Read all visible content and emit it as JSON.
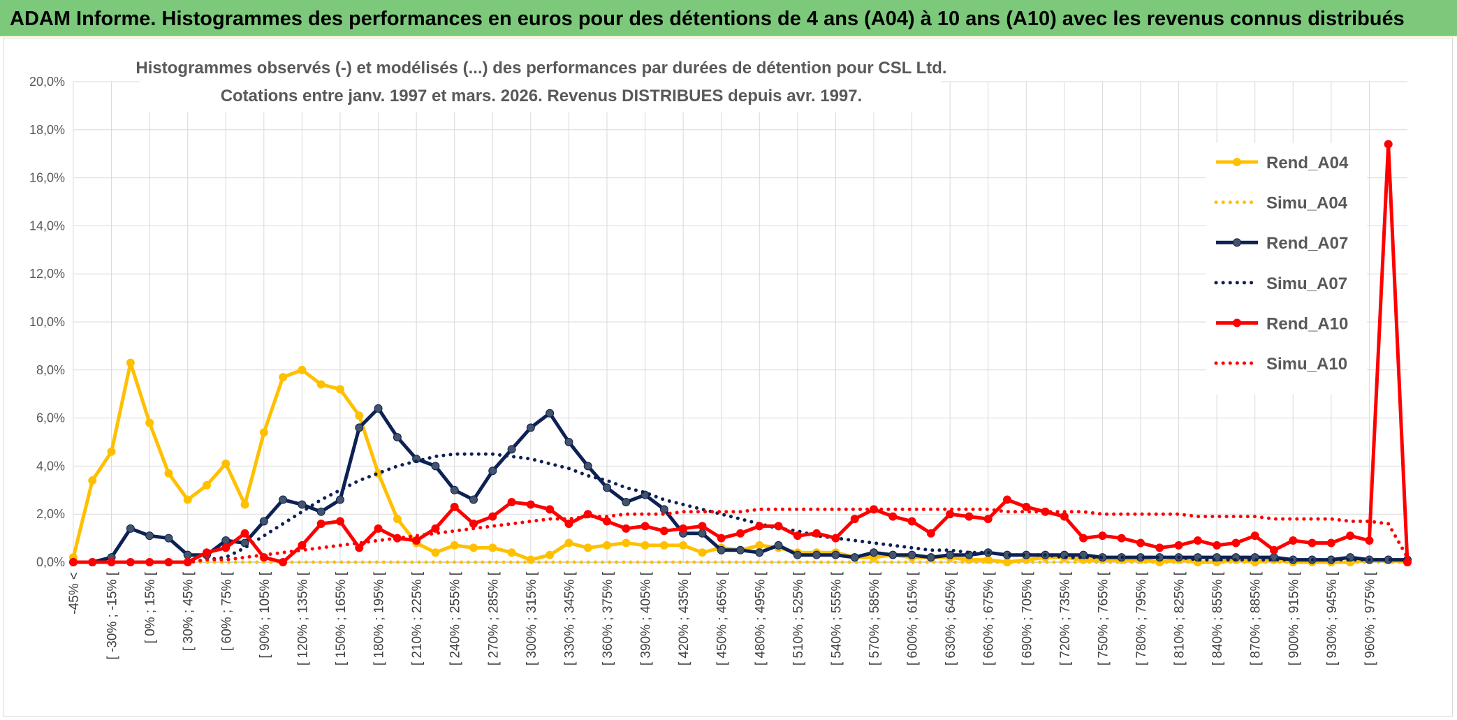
{
  "header": {
    "title": "ADAM Informe. Histogrammes des performances en euros pour des détentions de 4 ans (A04) à 10 ans (A10) avec les revenus connus distribués"
  },
  "chart_data": {
    "type": "line",
    "title": "Histogrammes observés (-) et modélisés (...) des performances par durées de détention pour CSL Ltd.",
    "subtitle": "Cotations entre janv. 1997 et mars. 2026. Revenus DISTRIBUES depuis avr. 1997.",
    "xlabel": "",
    "ylabel": "",
    "ylim": [
      0,
      20
    ],
    "ytick_labels": [
      "0,0%",
      "2,0%",
      "4,0%",
      "6,0%",
      "8,0%",
      "10,0%",
      "12,0%",
      "14,0%",
      "16,0%",
      "18,0%",
      "20,0%"
    ],
    "grid": true,
    "legend_position": "right",
    "categories": [
      "-45% <",
      "[ -45% ; -30% [",
      "[ -30% ; -15% [",
      "[ -15% ; 0% [",
      "[ 0% ; 15% [",
      "[ 15% ; 30% [",
      "[ 30% ; 45% [",
      "[ 45% ; 60% [",
      "[ 60% ; 75% [",
      "[ 75% ; 90% [",
      "[ 90% ; 105% [",
      "[ 105% ; 120% [",
      "[ 120% ; 135% [",
      "[ 135% ; 150% [",
      "[ 150% ; 165% [",
      "[ 165% ; 180% [",
      "[ 180% ; 195% [",
      "[ 195% ; 210% [",
      "[ 210% ; 225% [",
      "[ 225% ; 240% [",
      "[ 240% ; 255% [",
      "[ 255% ; 270% [",
      "[ 270% ; 285% [",
      "[ 285% ; 300% [",
      "[ 300% ; 315% [",
      "[ 315% ; 330% [",
      "[ 330% ; 345% [",
      "[ 345% ; 360% [",
      "[ 360% ; 375% [",
      "[ 375% ; 390% [",
      "[ 390% ; 405% [",
      "[ 405% ; 420% [",
      "[ 420% ; 435% [",
      "[ 435% ; 450% [",
      "[ 450% ; 465% [",
      "[ 465% ; 480% [",
      "[ 480% ; 495% [",
      "[ 495% ; 510% [",
      "[ 510% ; 525% [",
      "[ 525% ; 540% [",
      "[ 540% ; 555% [",
      "[ 555% ; 570% [",
      "[ 570% ; 585% [",
      "[ 585% ; 600% [",
      "[ 600% ; 615% [",
      "[ 615% ; 630% [",
      "[ 630% ; 645% [",
      "[ 645% ; 660% [",
      "[ 660% ; 675% [",
      "[ 675% ; 690% [",
      "[ 690% ; 705% [",
      "[ 705% ; 720% [",
      "[ 720% ; 735% [",
      "[ 735% ; 750% [",
      "[ 750% ; 765% [",
      "[ 765% ; 780% [",
      "[ 780% ; 795% [",
      "[ 795% ; 810% [",
      "[ 810% ; 825% [",
      "[ 825% ; 840% [",
      "[ 840% ; 855% [",
      "[ 855% ; 870% [",
      "[ 870% ; 885% [",
      "[ 885% ; 900% [",
      "[ 900% ; 915% [",
      "[ 915% ; 930% [",
      "[ 930% ; 945% [",
      "[ 945% ; 960% [",
      "[ 960% ; 975% [",
      "[ 975% ; 990% [",
      "990% <"
    ],
    "visible_x_ticks": [
      "-45% <",
      "[ -30% ; -15% [",
      "[ 0% ; 15% [",
      "[ 30% ; 45% [",
      "[ 60% ; 75% [",
      "[ 90% ; 105% [",
      "[ 120% ; 135% [",
      "[ 150% ; 165% [",
      "[ 180% ; 195% [",
      "[ 210% ; 225% [",
      "[ 240% ; 255% [",
      "[ 270% ; 285% [",
      "[ 300% ; 315% [",
      "[ 330% ; 345% [",
      "[ 360% ; 375% [",
      "[ 390% ; 405% [",
      "[ 420% ; 435% [",
      "[ 450% ; 465% [",
      "[ 480% ; 495% [",
      "[ 510% ; 525% [",
      "[ 540% ; 555% [",
      "[ 570% ; 585% [",
      "[ 600% ; 615% [",
      "[ 630% ; 645% [",
      "[ 660% ; 675% [",
      "[ 690% ; 705% [",
      "[ 720% ; 735% [",
      "[ 750% ; 765% [",
      "[ 780% ; 795% [",
      "[ 810% ; 825% [",
      "[ 840% ; 855% [",
      "[ 870% ; 885% [",
      "[ 900% ; 915% [",
      "[ 930% ; 945% [",
      "[ 960% ; 975% ["
    ],
    "series": [
      {
        "name": "Rend_A04",
        "color": "#ffc000",
        "style": "solid",
        "markers": true,
        "values": [
          0.2,
          3.4,
          4.6,
          8.3,
          5.8,
          3.7,
          2.6,
          3.2,
          4.1,
          2.4,
          5.4,
          7.7,
          8.0,
          7.4,
          7.2,
          6.1,
          3.7,
          1.8,
          0.8,
          0.4,
          0.7,
          0.6,
          0.6,
          0.4,
          0.1,
          0.3,
          0.8,
          0.6,
          0.7,
          0.8,
          0.7,
          0.7,
          0.7,
          0.4,
          0.6,
          0.5,
          0.7,
          0.6,
          0.4,
          0.4,
          0.4,
          0.2,
          0.2,
          0.3,
          0.2,
          0.2,
          0.2,
          0.1,
          0.1,
          0.0,
          0.1,
          0.2,
          0.2,
          0.1,
          0.1,
          0.1,
          0.1,
          0.0,
          0.1,
          0.0,
          0.0,
          0.1,
          0.0,
          0.1,
          0.0,
          0.0,
          0.0,
          0.0,
          0.1,
          0.1,
          0.0
        ]
      },
      {
        "name": "Simu_A04",
        "color": "#ffc000",
        "style": "dotted",
        "markers": false,
        "values": [
          0.0,
          0.0,
          0.0,
          0.0,
          0.0,
          0.0,
          0.0,
          0.0,
          0.0,
          0.0,
          0.0,
          0.0,
          0.0,
          0.0,
          0.0,
          0.0,
          0.0,
          0.0,
          0.0,
          0.0,
          0.0,
          0.0,
          0.0,
          0.0,
          0.0,
          0.0,
          0.0,
          0.0,
          0.0,
          0.0,
          0.0,
          0.0,
          0.0,
          0.0,
          0.0,
          0.0,
          0.0,
          0.0,
          0.0,
          0.0,
          0.0,
          0.0,
          0.0,
          0.0,
          0.0,
          0.0,
          0.0,
          0.0,
          0.0,
          0.0,
          0.0,
          0.0,
          0.0,
          0.0,
          0.0,
          0.0,
          0.0,
          0.0,
          0.0,
          0.0,
          0.0,
          0.0,
          0.0,
          0.0,
          0.0,
          0.0,
          0.0,
          0.0,
          0.0,
          0.0,
          0.0
        ]
      },
      {
        "name": "Rend_A07",
        "color": "#0d2154",
        "style": "solid",
        "markers": true,
        "values": [
          0.0,
          0.0,
          0.2,
          1.4,
          1.1,
          1.0,
          0.3,
          0.3,
          0.9,
          0.8,
          1.7,
          2.6,
          2.4,
          2.1,
          2.6,
          5.6,
          6.4,
          5.2,
          4.3,
          4.0,
          3.0,
          2.6,
          3.8,
          4.7,
          5.6,
          6.2,
          5.0,
          4.0,
          3.1,
          2.5,
          2.8,
          2.2,
          1.2,
          1.2,
          0.5,
          0.5,
          0.4,
          0.7,
          0.3,
          0.3,
          0.3,
          0.2,
          0.4,
          0.3,
          0.3,
          0.2,
          0.3,
          0.3,
          0.4,
          0.3,
          0.3,
          0.3,
          0.3,
          0.3,
          0.2,
          0.2,
          0.2,
          0.2,
          0.2,
          0.2,
          0.2,
          0.2,
          0.2,
          0.2,
          0.1,
          0.1,
          0.1,
          0.2,
          0.1,
          0.1,
          0.1
        ]
      },
      {
        "name": "Simu_A07",
        "color": "#0d2154",
        "style": "dotted",
        "markers": false,
        "values": [
          0.0,
          0.0,
          0.0,
          0.0,
          0.0,
          0.0,
          0.0,
          0.1,
          0.2,
          0.6,
          1.1,
          1.6,
          2.1,
          2.6,
          3.0,
          3.4,
          3.7,
          4.0,
          4.2,
          4.4,
          4.5,
          4.5,
          4.5,
          4.4,
          4.3,
          4.1,
          3.9,
          3.6,
          3.4,
          3.1,
          2.9,
          2.6,
          2.4,
          2.2,
          2.0,
          1.8,
          1.6,
          1.4,
          1.3,
          1.1,
          1.0,
          0.9,
          0.8,
          0.7,
          0.6,
          0.5,
          0.5,
          0.4,
          0.4,
          0.3,
          0.3,
          0.3,
          0.2,
          0.2,
          0.2,
          0.2,
          0.2,
          0.2,
          0.2,
          0.1,
          0.1,
          0.1,
          0.1,
          0.1,
          0.1,
          0.1,
          0.1,
          0.1,
          0.1,
          0.1,
          0.1
        ]
      },
      {
        "name": "Rend_A10",
        "color": "#ff0000",
        "style": "solid",
        "markers": true,
        "values": [
          0.0,
          0.0,
          0.0,
          0.0,
          0.0,
          0.0,
          0.0,
          0.4,
          0.6,
          1.2,
          0.2,
          0.0,
          0.7,
          1.6,
          1.7,
          0.6,
          1.4,
          1.0,
          0.9,
          1.4,
          2.3,
          1.6,
          1.9,
          2.5,
          2.4,
          2.2,
          1.6,
          2.0,
          1.7,
          1.4,
          1.5,
          1.3,
          1.4,
          1.5,
          1.0,
          1.2,
          1.5,
          1.5,
          1.1,
          1.2,
          1.0,
          1.8,
          2.2,
          1.9,
          1.7,
          1.2,
          2.0,
          1.9,
          1.8,
          2.6,
          2.3,
          2.1,
          1.9,
          1.0,
          1.1,
          1.0,
          0.8,
          0.6,
          0.7,
          0.9,
          0.7,
          0.8,
          1.1,
          0.5,
          0.9,
          0.8,
          0.8,
          1.1,
          0.9,
          17.4,
          0.0
        ]
      },
      {
        "name": "Simu_A10",
        "color": "#ff0000",
        "style": "dotted",
        "markers": false,
        "values": [
          0.0,
          0.0,
          0.0,
          0.0,
          0.0,
          0.0,
          0.0,
          0.1,
          0.1,
          0.2,
          0.3,
          0.4,
          0.5,
          0.6,
          0.7,
          0.8,
          0.9,
          1.0,
          1.1,
          1.2,
          1.3,
          1.4,
          1.5,
          1.6,
          1.7,
          1.8,
          1.8,
          1.9,
          1.9,
          2.0,
          2.0,
          2.0,
          2.1,
          2.1,
          2.1,
          2.1,
          2.2,
          2.2,
          2.2,
          2.2,
          2.2,
          2.2,
          2.2,
          2.2,
          2.2,
          2.2,
          2.2,
          2.2,
          2.2,
          2.1,
          2.1,
          2.1,
          2.1,
          2.1,
          2.0,
          2.0,
          2.0,
          2.0,
          2.0,
          1.9,
          1.9,
          1.9,
          1.9,
          1.8,
          1.8,
          1.8,
          1.8,
          1.7,
          1.7,
          1.6,
          0.2
        ]
      }
    ]
  }
}
